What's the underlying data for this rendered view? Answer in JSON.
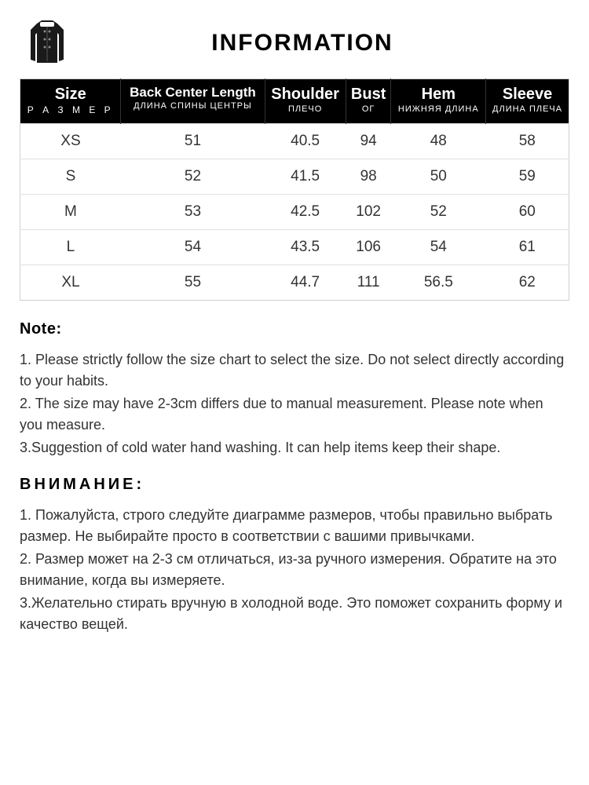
{
  "header": {
    "title": "INFORMATION"
  },
  "table": {
    "header_bg": "#000000",
    "header_fg": "#ffffff",
    "border_color": "#d0d0d0",
    "row_border": "#e0e0e0",
    "columns": [
      {
        "main": "Size",
        "sub": "Р А З М Е Р",
        "main_small": false,
        "sub_spaced": true
      },
      {
        "main": "Back Center Length",
        "sub": "ДЛИНА СПИНЫ ЦЕНТРЫ",
        "main_small": true,
        "sub_spaced": false
      },
      {
        "main": "Shoulder",
        "sub": "ПЛЕЧО",
        "main_small": false,
        "sub_spaced": false
      },
      {
        "main": "Bust",
        "sub": "ОГ",
        "main_small": false,
        "sub_spaced": false
      },
      {
        "main": "Hem",
        "sub": "НИЖНЯЯ ДЛИНА",
        "main_small": false,
        "sub_spaced": false
      },
      {
        "main": "Sleeve",
        "sub": "ДЛИНА ПЛЕЧА",
        "main_small": false,
        "sub_spaced": false
      }
    ],
    "rows": [
      [
        "XS",
        "51",
        "40.5",
        "94",
        "48",
        "58"
      ],
      [
        "S",
        "52",
        "41.5",
        "98",
        "50",
        "59"
      ],
      [
        "M",
        "53",
        "42.5",
        "102",
        "52",
        "60"
      ],
      [
        "L",
        "54",
        "43.5",
        "106",
        "54",
        "61"
      ],
      [
        "XL",
        "55",
        "44.7",
        "111",
        "56.5",
        "62"
      ]
    ]
  },
  "notes_en": {
    "heading": "Note:",
    "items": [
      "1. Please strictly follow the size chart  to select the size. Do not select directly according to your habits.",
      "2. The size may have 2-3cm differs due to manual measurement. Please note when you measure.",
      "3.Suggestion of cold water hand washing. It can help items keep their shape."
    ]
  },
  "notes_ru": {
    "heading": "ВНИМАНИЕ:",
    "items": [
      "1. Пожалуйста, строго следуйте диаграмме размеров, чтобы правильно выбрать размер. Не выбирайте просто в соответствии с вашими привычками.",
      "2. Размер может на 2-3 см отличаться, из-за ручного измерения. Обратите на это внимание, когда вы измеряете.",
      "3.Желательно стирать вручную в холодной воде. Это поможет сохранить форму и качество вещей."
    ]
  }
}
